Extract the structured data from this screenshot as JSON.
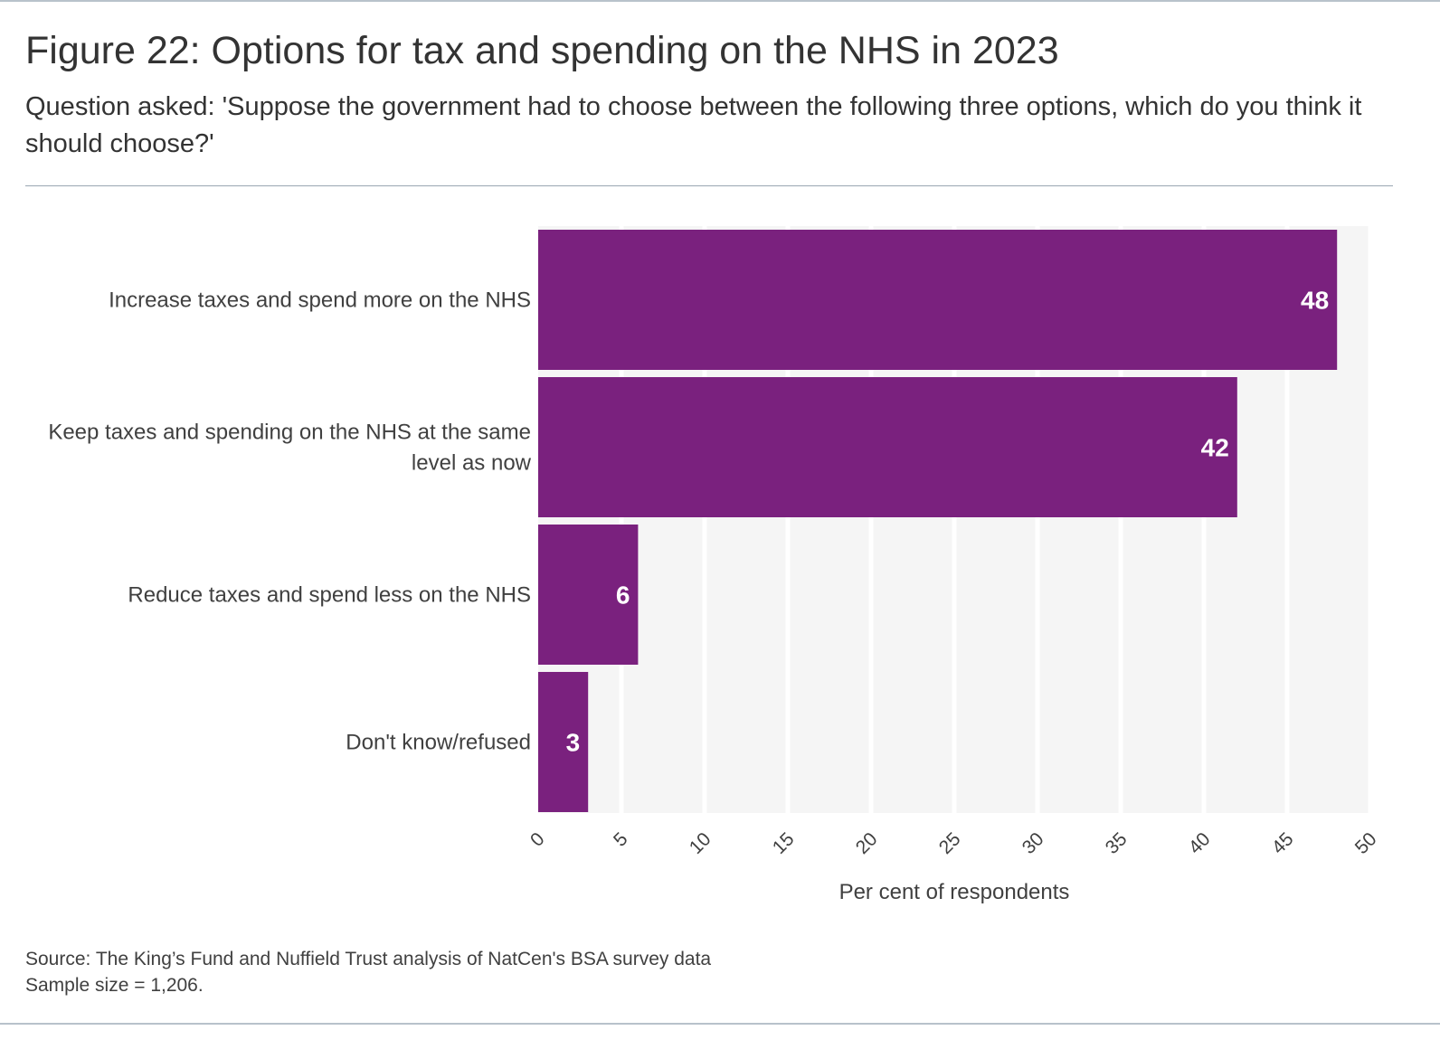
{
  "title": "Figure 22: Options for tax and spending on the NHS in 2023",
  "subtitle": "Question asked: 'Suppose the government had to choose between the following three options, which do you think it should choose?'",
  "source": "Source: The King’s Fund and Nuffield Trust analysis of NatCen's BSA survey data",
  "sample": "Sample size = 1,206.",
  "colors": {
    "bar": "#7a217e",
    "plot_bg": "#f5f5f5",
    "grid": "#ffffff"
  },
  "chart_data": {
    "type": "bar",
    "orientation": "horizontal",
    "categories": [
      [
        "Increase taxes and spend more on the NHS"
      ],
      [
        "Keep taxes and spending on the NHS at the same",
        "level as now"
      ],
      [
        "Reduce taxes and spend less on the NHS"
      ],
      [
        "Don't know/refused"
      ]
    ],
    "values": [
      48,
      42,
      6,
      3
    ],
    "value_labels": [
      "48",
      "42",
      "6",
      "3"
    ],
    "xlabel": "Per cent of respondents",
    "ylabel": "",
    "xlim": [
      0,
      50
    ],
    "ticks": [
      0,
      5,
      10,
      15,
      20,
      25,
      30,
      35,
      40,
      45,
      50
    ],
    "grid": true,
    "legend": "none"
  }
}
